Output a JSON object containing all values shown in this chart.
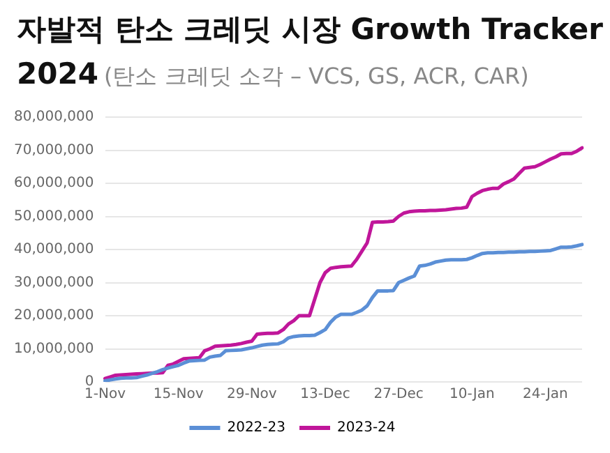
{
  "chart_data": {
    "type": "line",
    "title": "자발적 탄소 크레딧 시장 Growth Tracker 2024",
    "subtitle": "(탄소 크레딧 소각  – VCS, GS, ACR, CAR)",
    "categories": [
      "1-Nov",
      null,
      null,
      null,
      null,
      null,
      null,
      null,
      null,
      null,
      null,
      null,
      null,
      null,
      "15-Nov",
      null,
      null,
      null,
      null,
      null,
      null,
      null,
      null,
      null,
      null,
      null,
      null,
      null,
      "29-Nov",
      null,
      null,
      null,
      null,
      null,
      null,
      null,
      null,
      null,
      null,
      null,
      null,
      null,
      "13-Dec",
      null,
      null,
      null,
      null,
      null,
      null,
      null,
      null,
      null,
      null,
      null,
      null,
      null,
      "27-Dec",
      null,
      null,
      null,
      null,
      null,
      null,
      null,
      null,
      null,
      null,
      null,
      null,
      null,
      "10-Jan",
      null,
      null,
      null,
      null,
      null,
      null,
      null,
      null,
      null,
      null,
      null,
      null,
      null,
      "24-Jan",
      null,
      null,
      null,
      null,
      null,
      null,
      null
    ],
    "series": [
      {
        "name": "2022-23",
        "color": "#5b8fd6",
        "values": [
          300000,
          600000,
          900000,
          1100000,
          1200000,
          1200000,
          1300000,
          1700000,
          2100000,
          2600000,
          3100000,
          3700000,
          4200000,
          4600000,
          5000000,
          5700000,
          6300000,
          6400000,
          6500000,
          6600000,
          7500000,
          7800000,
          8000000,
          9400000,
          9500000,
          9600000,
          9700000,
          10000000,
          10300000,
          10700000,
          11100000,
          11300000,
          11400000,
          11500000,
          12100000,
          13300000,
          13700000,
          13900000,
          14000000,
          14000000,
          14100000,
          14900000,
          15800000,
          18000000,
          19600000,
          20400000,
          20400000,
          20400000,
          21000000,
          21700000,
          23000000,
          25500000,
          27500000,
          27500000,
          27500000,
          27600000,
          30000000,
          30700000,
          31400000,
          32000000,
          35000000,
          35200000,
          35600000,
          36200000,
          36500000,
          36800000,
          36900000,
          36900000,
          36900000,
          37000000,
          37500000,
          38200000,
          38800000,
          39000000,
          39000000,
          39100000,
          39100000,
          39200000,
          39200000,
          39300000,
          39300000,
          39400000,
          39400000,
          39500000,
          39600000,
          39700000,
          40200000,
          40700000,
          40700000,
          40800000,
          41100000,
          41500000
        ]
      },
      {
        "name": "2023-24",
        "color": "#c0169a",
        "values": [
          1000000,
          1500000,
          2000000,
          2100000,
          2200000,
          2300000,
          2400000,
          2500000,
          2600000,
          2700000,
          2700000,
          2800000,
          5000000,
          5400000,
          6200000,
          7000000,
          7100000,
          7200000,
          7300000,
          9400000,
          10000000,
          10800000,
          10900000,
          11000000,
          11100000,
          11300000,
          11600000,
          12000000,
          12300000,
          14400000,
          14600000,
          14700000,
          14700000,
          14800000,
          15800000,
          17500000,
          18500000,
          20000000,
          20000000,
          20000000,
          25000000,
          30000000,
          33000000,
          34300000,
          34600000,
          34800000,
          34900000,
          35000000,
          37000000,
          39500000,
          42000000,
          48200000,
          48300000,
          48300000,
          48400000,
          48600000,
          50000000,
          51000000,
          51400000,
          51600000,
          51700000,
          51700000,
          51800000,
          51800000,
          51900000,
          52000000,
          52200000,
          52400000,
          52500000,
          52800000,
          56000000,
          57000000,
          57800000,
          58200000,
          58500000,
          58500000,
          59800000,
          60500000,
          61300000,
          63000000,
          64600000,
          64800000,
          65000000,
          65700000,
          66500000,
          67300000,
          68000000,
          68900000,
          69000000,
          69000000,
          69700000,
          70700000
        ]
      }
    ],
    "ylim": [
      0,
      80000000
    ],
    "yticks": [
      0,
      {
        "value": 10000000,
        "label": "10,000,000"
      },
      {
        "value": 20000000,
        "label": "20,000,000"
      },
      {
        "value": 30000000,
        "label": "30,000,000"
      },
      {
        "value": 40000000,
        "label": "40,000,000"
      },
      {
        "value": 50000000,
        "label": "50,000,000"
      },
      {
        "value": 60000000,
        "label": "60,000,000"
      },
      {
        "value": 70000000,
        "label": "70,000,000"
      },
      {
        "value": 80000000,
        "label": "80,000,000"
      }
    ],
    "grid": "y",
    "legend": "bottom",
    "marker": "none",
    "line_style": "solid"
  }
}
